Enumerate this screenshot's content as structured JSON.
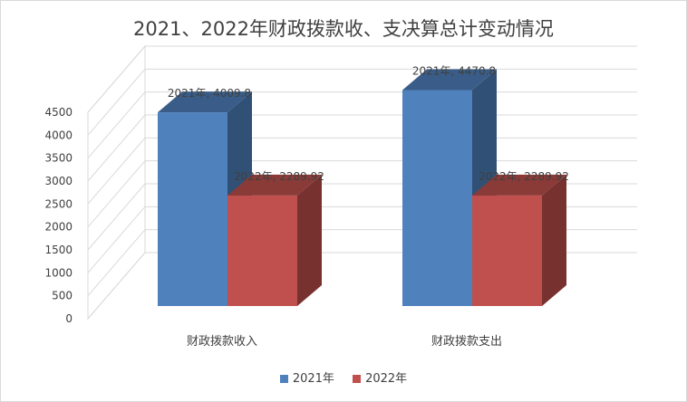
{
  "chart_data": {
    "type": "bar",
    "title": "2021、2022年财政拨款收、支决算总计变动情况",
    "categories": [
      "财政拨款收入",
      "财政拨款支出"
    ],
    "series": [
      {
        "name": "2021年",
        "values": [
          4009.8,
          4470.8
        ],
        "labels": [
          "2021年, 4009.8",
          "2021年, 4470.8"
        ],
        "color": "#4f81bd"
      },
      {
        "name": "2022年",
        "values": [
          2289.92,
          2289.92
        ],
        "labels": [
          "2022年, 2289.92",
          "2022年, 2289.92"
        ],
        "color": "#c0504d"
      }
    ],
    "yticks": [
      "0",
      "500",
      "1000",
      "1500",
      "2000",
      "2500",
      "3000",
      "3500",
      "4000",
      "4500"
    ],
    "ylim": [
      0,
      4500
    ],
    "grid": true,
    "legend": "bottom",
    "style": "3d-column"
  }
}
